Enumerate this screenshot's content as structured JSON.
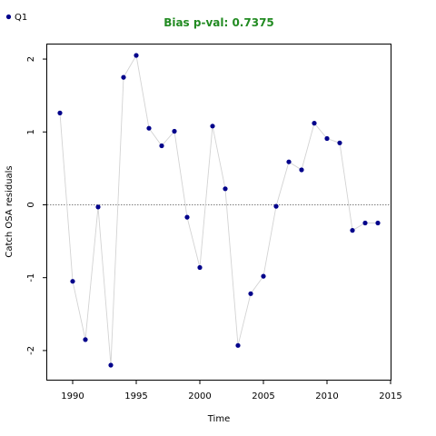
{
  "chart_data": {
    "type": "line",
    "title": "Bias p-val: 0.7375",
    "title_color": "#228B22",
    "xlabel": "Time",
    "ylabel": "Catch OSA residuals",
    "xlim": [
      1988,
      2015
    ],
    "ylim": [
      -2.4,
      2.2
    ],
    "x_ticks": [
      1990,
      1995,
      2000,
      2005,
      2010,
      2015
    ],
    "y_ticks": [
      -2,
      -1,
      0,
      1,
      2
    ],
    "x_tick_labels": [
      "1990",
      "1995",
      "2000",
      "2005",
      "2010",
      "2015"
    ],
    "y_tick_labels": [
      "-2",
      "-1",
      "0",
      "1",
      "2"
    ],
    "reference_line": 0,
    "reference_line_style": "dotted",
    "line_color": "#d3d3d3",
    "point_color": "#00008B",
    "grid": false,
    "legend_position": "top-left",
    "series": [
      {
        "name": "Q1",
        "x": [
          1989,
          1990,
          1991,
          1992,
          1993,
          1994,
          1995,
          1996,
          1997,
          1998,
          1999,
          2000,
          2001,
          2002,
          2003,
          2004,
          2005,
          2006,
          2007,
          2008,
          2009,
          2010,
          2011,
          2012,
          2013,
          2014
        ],
        "values": [
          1.26,
          -1.05,
          -1.85,
          -0.03,
          -2.2,
          1.75,
          2.05,
          1.05,
          0.81,
          1.01,
          -0.17,
          -0.86,
          1.08,
          0.22,
          -1.93,
          -1.22,
          -0.98,
          -0.02,
          0.59,
          0.48,
          1.12,
          0.91,
          0.85,
          -0.35,
          -0.25,
          -0.25
        ]
      }
    ]
  }
}
